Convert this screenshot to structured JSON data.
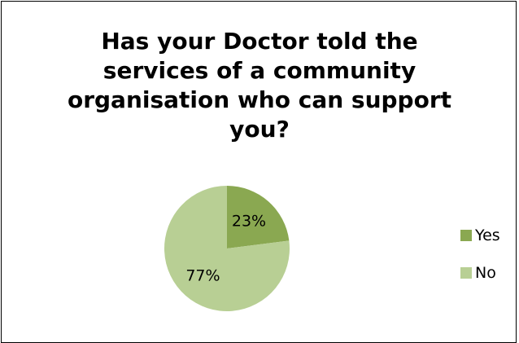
{
  "chart_data": {
    "type": "pie",
    "title_lines": [
      "Has your Doctor told the",
      "services of a community",
      "organisation who can support",
      "you?"
    ],
    "categories": [
      "Yes",
      "No"
    ],
    "values": [
      23,
      77
    ],
    "labels": [
      "23%",
      "77%"
    ],
    "colors": [
      "#8aa851",
      "#b8cf94"
    ],
    "legend_position": "right"
  }
}
